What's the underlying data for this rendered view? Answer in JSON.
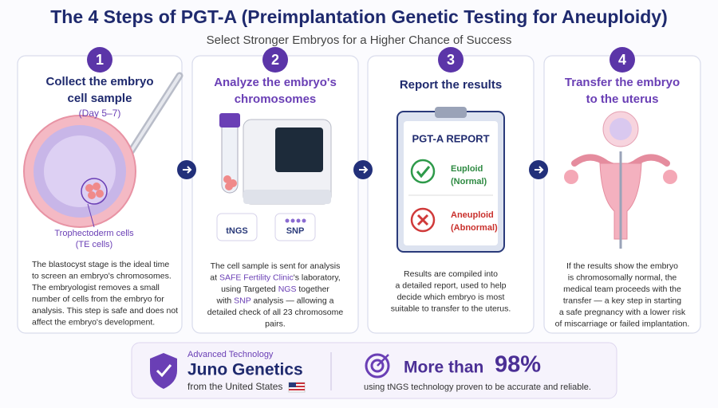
{
  "header": {
    "title": "The 4 Steps of PGT-A (Preimplantation Genetic Testing for Aneuploidy)",
    "subtitle": "Select Stronger Embryos for a Higher Chance of Success"
  },
  "steps": [
    {
      "number": "1",
      "heading": [
        "Collect the embryo",
        "cell sample"
      ],
      "note": "(Day 5–7)",
      "caption": [
        "Trophectoderm cells",
        "(TE cells)"
      ],
      "description": [
        "The blastocyst stage is the ideal time",
        "to screen an embryo's chromosomes.",
        "The embryologist removes a small",
        "number of cells from the embryo for",
        "analysis. This step is safe and does not",
        "affect the embryo's development."
      ]
    },
    {
      "number": "2",
      "heading": [
        "Analyze the embryo's",
        "chromosomes"
      ],
      "badges": [
        "tNGS",
        "SNP"
      ],
      "description": [
        "The cell sample is sent for analysis",
        [
          "at ",
          "SAFE Fertility Clinic",
          "'s laboratory,"
        ],
        [
          "using Targeted ",
          "NGS",
          " together"
        ],
        [
          "with ",
          "SNP",
          " analysis — allowing a"
        ],
        "detailed check of all 23 chromosome",
        "pairs."
      ]
    },
    {
      "number": "3",
      "heading": [
        "Report the results"
      ],
      "report": {
        "title": "PGT-A REPORT",
        "results": [
          [
            "Euploid",
            "(Normal)"
          ],
          [
            "Aneuploid",
            "(Abnormal)"
          ]
        ]
      },
      "description": [
        "Results are compiled into",
        "a detailed report, used to help",
        "decide which embryo is most",
        "suitable to transfer to the uterus."
      ]
    },
    {
      "number": "4",
      "heading": [
        "Transfer the embryo",
        "to the uterus"
      ],
      "description": [
        "If the results show the embryo",
        "is chromosomally normal, the",
        "medical team proceeds with the",
        "transfer — a key step in starting",
        "a safe pregnancy with a lower risk",
        "of miscarriage or failed implantation."
      ]
    }
  ],
  "banner": {
    "label": "Advanced Technology",
    "company": "Juno Genetics",
    "origin": "from the United States",
    "claim_prefix": "More than",
    "claim_value": "98%",
    "claim_note": "using tNGS technology proven to be accurate and reliable."
  }
}
